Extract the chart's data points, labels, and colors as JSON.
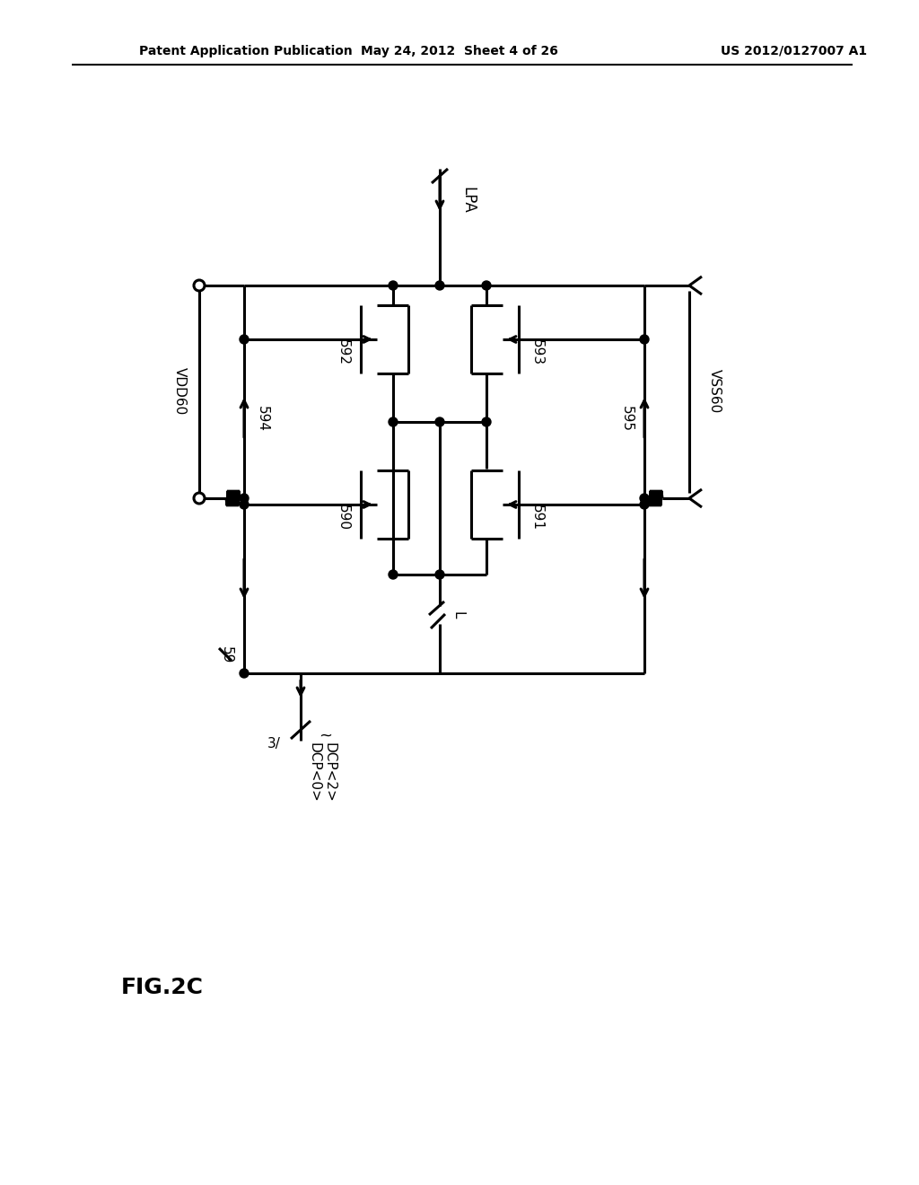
{
  "header_left": "Patent Application Publication",
  "header_mid": "May 24, 2012  Sheet 4 of 26",
  "header_right": "US 2012/0127007 A1",
  "fig_label": "FIG.2C",
  "background": "#ffffff",
  "lc": "#000000",
  "lw": 2.2
}
